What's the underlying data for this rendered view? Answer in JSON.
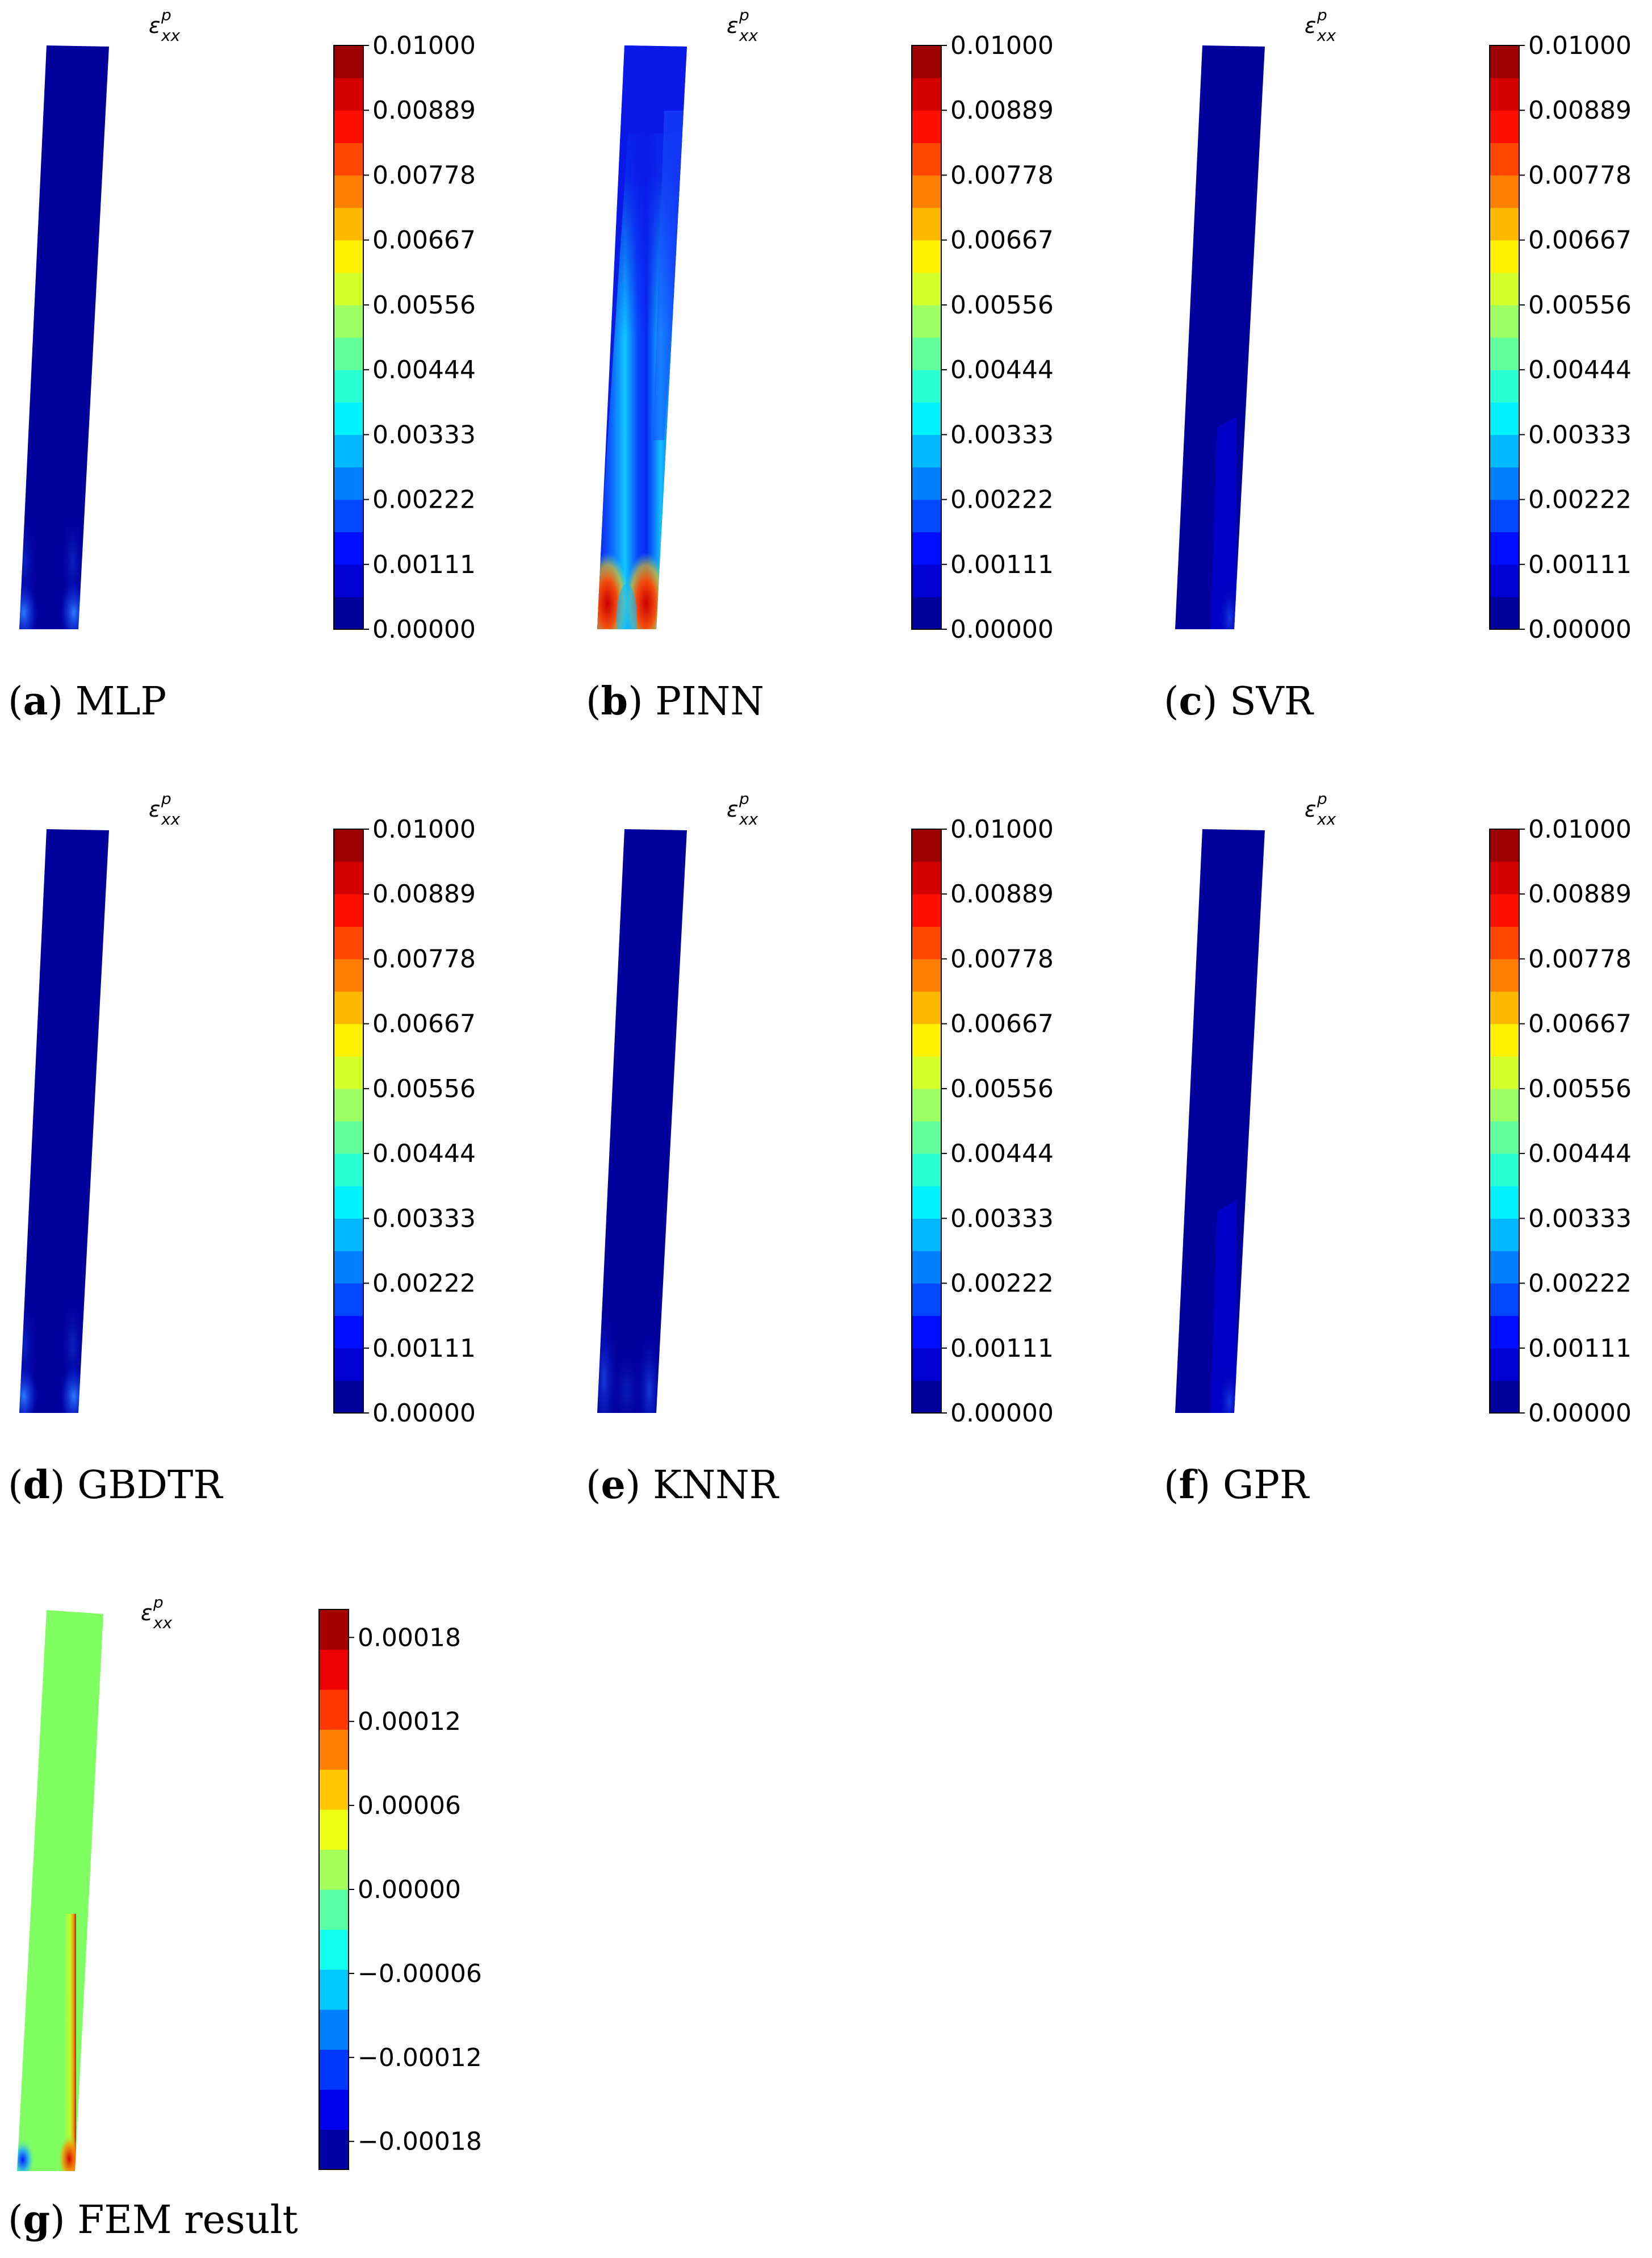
{
  "figure": {
    "variable_label": "ε",
    "variable_superscript": "p",
    "variable_subscript": "xx",
    "panels": [
      {
        "letter": "a",
        "name": "MLP",
        "pattern": "mlp",
        "colorbar": {
          "min": 0.0,
          "max": 0.01,
          "levels": 18,
          "tick_labels": [
            "0.00000",
            "0.00111",
            "0.00222",
            "0.00333",
            "0.00444",
            "0.00556",
            "0.00667",
            "0.00778",
            "0.00889",
            "0.01000"
          ]
        }
      },
      {
        "letter": "b",
        "name": "PINN",
        "pattern": "pinn",
        "colorbar": {
          "min": 0.0,
          "max": 0.01,
          "levels": 18,
          "tick_labels": [
            "0.00000",
            "0.00111",
            "0.00222",
            "0.00333",
            "0.00444",
            "0.00556",
            "0.00667",
            "0.00778",
            "0.00889",
            "0.01000"
          ]
        }
      },
      {
        "letter": "c",
        "name": "SVR",
        "pattern": "svr",
        "colorbar": {
          "min": 0.0,
          "max": 0.01,
          "levels": 18,
          "tick_labels": [
            "0.00000",
            "0.00111",
            "0.00222",
            "0.00333",
            "0.00444",
            "0.00556",
            "0.00667",
            "0.00778",
            "0.00889",
            "0.01000"
          ]
        }
      },
      {
        "letter": "d",
        "name": "GBDTR",
        "pattern": "mlp",
        "colorbar": {
          "min": 0.0,
          "max": 0.01,
          "levels": 18,
          "tick_labels": [
            "0.00000",
            "0.00111",
            "0.00222",
            "0.00333",
            "0.00444",
            "0.00556",
            "0.00667",
            "0.00778",
            "0.00889",
            "0.01000"
          ]
        }
      },
      {
        "letter": "e",
        "name": "KNNR",
        "pattern": "knnr",
        "colorbar": {
          "min": 0.0,
          "max": 0.01,
          "levels": 18,
          "tick_labels": [
            "0.00000",
            "0.00111",
            "0.00222",
            "0.00333",
            "0.00444",
            "0.00556",
            "0.00667",
            "0.00778",
            "0.00889",
            "0.01000"
          ]
        }
      },
      {
        "letter": "f",
        "name": "GPR",
        "pattern": "svr",
        "colorbar": {
          "min": 0.0,
          "max": 0.01,
          "levels": 18,
          "tick_labels": [
            "0.00000",
            "0.00111",
            "0.00222",
            "0.00333",
            "0.00444",
            "0.00556",
            "0.00667",
            "0.00778",
            "0.00889",
            "0.01000"
          ]
        }
      },
      {
        "letter": "g",
        "name": "FEM result",
        "pattern": "fem",
        "colorbar": {
          "min": -0.0002,
          "max": 0.0002,
          "levels": 14,
          "tick_labels": [
            "−0.00018",
            "−0.00012",
            "−0.00006",
            "0.00000",
            "0.00006",
            "0.00012",
            "0.00018"
          ],
          "tick_values": [
            -0.00018,
            -0.00012,
            -6e-05,
            0.0,
            6e-05,
            0.00012,
            0.00018
          ]
        }
      }
    ]
  }
}
